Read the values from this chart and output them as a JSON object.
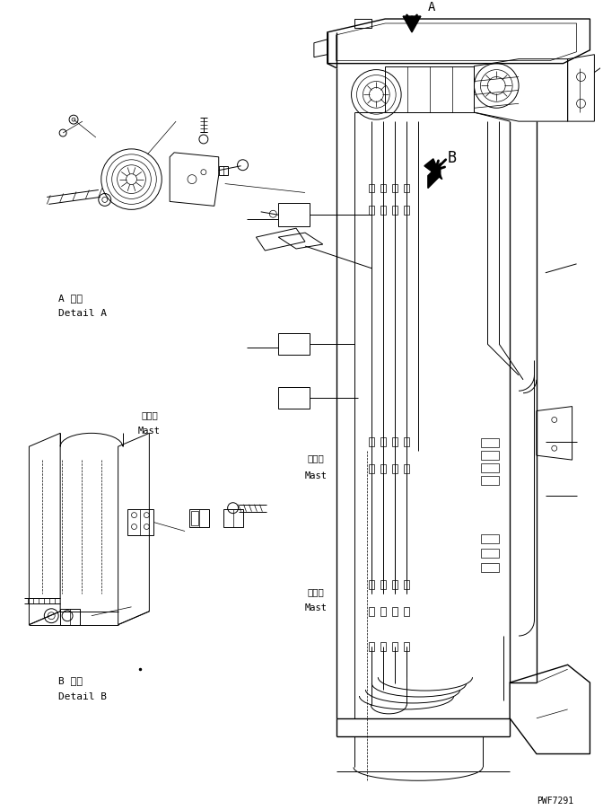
{
  "bg_color": "#ffffff",
  "line_color": "#000000",
  "fig_width": 6.72,
  "fig_height": 9.03,
  "dpi": 100,
  "watermark": "PWF7291",
  "label_A_line1": "A 詳細",
  "label_A_line2": "Detail A",
  "label_B_line1": "B 詳細",
  "label_B_line2": "Detail B",
  "label_mast_ja": "マスト",
  "label_mast_en": "Mast",
  "arrow_A": "A",
  "arrow_B": "B"
}
